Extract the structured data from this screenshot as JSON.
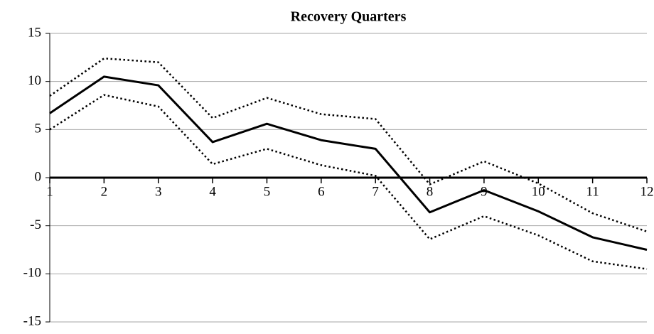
{
  "chart_data": {
    "type": "line",
    "title": "Recovery Quarters",
    "x": [
      1,
      2,
      3,
      4,
      5,
      6,
      7,
      8,
      9,
      10,
      11,
      12
    ],
    "xlim": [
      1,
      12
    ],
    "xticks": [
      1,
      2,
      3,
      4,
      5,
      6,
      7,
      8,
      9,
      10,
      11,
      12
    ],
    "ylim": [
      -15,
      15
    ],
    "yticks": [
      -15,
      -10,
      -5,
      0,
      5,
      10,
      15
    ],
    "grid": true,
    "series": [
      {
        "color": "#000000",
        "style": "solid",
        "values": [
          6.7,
          10.5,
          9.6,
          3.7,
          5.6,
          3.9,
          3.0,
          -3.6,
          -1.3,
          -3.5,
          -6.2,
          -7.5
        ]
      },
      {
        "color": "#000000",
        "style": "dotted",
        "values": [
          8.5,
          12.4,
          12.0,
          6.2,
          8.3,
          6.6,
          6.1,
          -0.7,
          1.7,
          -0.6,
          -3.7,
          -5.6
        ]
      },
      {
        "color": "#000000",
        "style": "dotted",
        "values": [
          5.0,
          8.6,
          7.4,
          1.4,
          3.0,
          1.3,
          0.2,
          -6.4,
          -4.0,
          -6.0,
          -8.7,
          -9.5
        ]
      }
    ]
  }
}
